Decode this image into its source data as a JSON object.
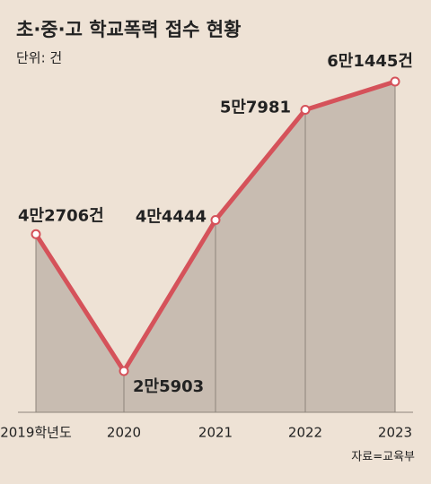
{
  "chart_data": {
    "type": "line",
    "title": "초·중·고 학교폭력 접수 현황",
    "subtitle": "단위: 건",
    "source": "자료=교육부",
    "categories": [
      "2019학년도",
      "2020",
      "2021",
      "2022",
      "2023"
    ],
    "values": [
      42706,
      25903,
      44444,
      57981,
      61445
    ],
    "value_labels": [
      "4만2706건",
      "2만5903",
      "4만4444",
      "5만7981",
      "6만1445건"
    ],
    "color": "#d5525a",
    "area_color": "#c8bcb1"
  }
}
